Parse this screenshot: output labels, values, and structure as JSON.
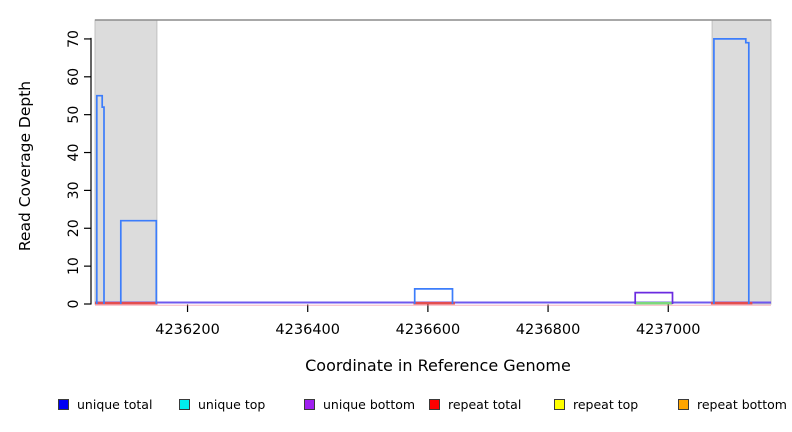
{
  "figure": {
    "background": "#ffffff",
    "plot_border_top_color": "#8c8c8c",
    "repeat_region_fill": "#dcdcdc",
    "repeat_region_edge": "#c0c0c0"
  },
  "chart_data": {
    "type": "line",
    "subtype": "step-coverage",
    "title": "",
    "xlabel": "Coordinate in Reference Genome",
    "ylabel": "Read Coverage Depth",
    "xlim": [
      4236046,
      4237171
    ],
    "ylim": [
      0,
      75
    ],
    "x_ticks": [
      4236200,
      4236400,
      4236600,
      4236800,
      4237000
    ],
    "y_ticks": [
      0,
      10,
      20,
      30,
      40,
      50,
      60,
      70
    ],
    "grid": false,
    "legend_position": "bottom",
    "shaded_regions": [
      {
        "x0": 4236046,
        "x1": 4236149
      },
      {
        "x0": 4237073,
        "x1": 4237171
      }
    ],
    "series": [
      {
        "name": "unique total",
        "draw_color": "#3c7dfb",
        "features": [
          [
            [
              4236049,
              0
            ],
            [
              4236049,
              55
            ],
            [
              4236058,
              55
            ],
            [
              4236058,
              52
            ],
            [
              4236061,
              52
            ],
            [
              4236061,
              0
            ]
          ],
          [
            [
              4236089,
              0
            ],
            [
              4236089,
              22
            ],
            [
              4236148,
              22
            ],
            [
              4236148,
              0
            ]
          ],
          [
            [
              4236578,
              0
            ],
            [
              4236578,
              4
            ],
            [
              4236641,
              4
            ],
            [
              4236641,
              0
            ]
          ],
          [
            [
              4237076,
              0
            ],
            [
              4237076,
              70
            ],
            [
              4237129,
              70
            ],
            [
              4237129,
              69
            ],
            [
              4237134,
              69
            ],
            [
              4237134,
              0
            ]
          ]
        ]
      },
      {
        "name": "unique bottom",
        "draw_color": "#6b2be0",
        "features": [
          [
            [
              4236945,
              0
            ],
            [
              4236945,
              3
            ],
            [
              4237007,
              3
            ],
            [
              4237007,
              0
            ]
          ]
        ]
      }
    ],
    "baseline": {
      "default_color": "#6e58ee",
      "fringe_color": "rgba(240,120,140,0.55)",
      "segments": [
        {
          "x0": 4236046,
          "x1": 4236150,
          "color": "#e44d50",
          "series": "repeat total"
        },
        {
          "x0": 4236576,
          "x1": 4236645,
          "color": "#e44d50",
          "series": "repeat total"
        },
        {
          "x0": 4236944,
          "x1": 4237007,
          "color": "#7cd87c",
          "series": "unique top"
        },
        {
          "x0": 4237071,
          "x1": 4237140,
          "color": "#e44d50",
          "series": "repeat total"
        }
      ]
    },
    "legend": [
      {
        "label": "unique total",
        "color": "#0000f5"
      },
      {
        "label": "unique top",
        "color": "#00eeee"
      },
      {
        "label": "unique bottom",
        "color": "#a020f0"
      },
      {
        "label": "repeat total",
        "color": "#ff0000"
      },
      {
        "label": "repeat top",
        "color": "#ffff00"
      },
      {
        "label": "repeat bottom",
        "color": "#ffa500"
      }
    ]
  }
}
